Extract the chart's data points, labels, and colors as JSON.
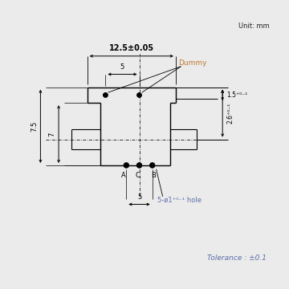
{
  "unit_text": "Unit: mm",
  "tolerance_text": "Tolerance : ±0.1",
  "dim_12_5": "12.5±0.05",
  "dim_5_top": "5",
  "dim_5_bot": "5",
  "dim_7": "7",
  "dim_7_5": "7.5",
  "dim_1_5": "1.5⁺⁰⁻¹",
  "dim_2_6": "2.6⁺⁰⁻¹",
  "dummy_text": "Dummy",
  "hole_text": "5-ø1⁺⁰⁻¹ hole",
  "label_A": "A",
  "label_C": "C",
  "label_B": "B",
  "bg_color": "#ebebeb",
  "box_color": "#ffffff",
  "line_color": "#000000",
  "dim_color": "#5b6fa8",
  "orange_color": "#c07830",
  "font_size_main": 7,
  "font_size_small": 6,
  "font_size_label": 6.5
}
